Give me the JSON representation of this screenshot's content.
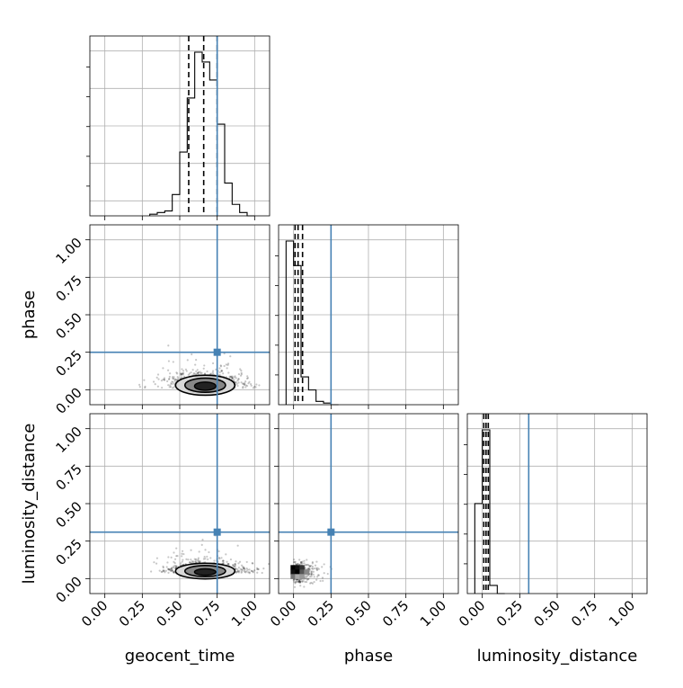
{
  "chart_data": {
    "type": "corner",
    "title": "",
    "parameters": [
      "geocent_time",
      "phase",
      "luminosity_distance"
    ],
    "axis_range": [
      -0.1,
      1.1
    ],
    "ticks": [
      0.0,
      0.25,
      0.5,
      0.75,
      1.0
    ],
    "tick_labels": [
      "0.00",
      "0.25",
      "0.50",
      "0.75",
      "1.00"
    ],
    "grid": true,
    "colors": {
      "truth": "#4682b4",
      "hist": "#000000",
      "density": "#000000"
    },
    "truths": {
      "geocent_time": 0.75,
      "phase": 0.25,
      "luminosity_distance": 0.31
    },
    "quantiles": {
      "geocent_time": [
        0.56,
        0.66,
        0.75
      ],
      "phase": [
        0.01,
        0.03,
        0.06
      ],
      "luminosity_distance": [
        0.01,
        0.025,
        0.04
      ]
    },
    "histograms": {
      "geocent_time": {
        "edges": [
          0.3,
          0.35,
          0.4,
          0.45,
          0.5,
          0.55,
          0.6,
          0.65,
          0.7,
          0.75,
          0.8,
          0.85,
          0.9,
          0.95,
          1.0
        ],
        "counts": [
          0.01,
          0.02,
          0.03,
          0.13,
          0.39,
          0.72,
          1.0,
          0.94,
          0.83,
          0.56,
          0.2,
          0.07,
          0.02,
          0.0
        ]
      },
      "phase": {
        "edges": [
          -0.05,
          0.0,
          0.05,
          0.1,
          0.15,
          0.2,
          0.25,
          0.3
        ],
        "counts": [
          1.0,
          0.85,
          0.17,
          0.09,
          0.02,
          0.01,
          0.0
        ]
      },
      "luminosity_distance": {
        "edges": [
          -0.05,
          0.0,
          0.05,
          0.1,
          0.15
        ],
        "counts": [
          0.55,
          1.0,
          0.05,
          0.0
        ]
      }
    },
    "scatter_2d": {
      "phase_vs_geocent_time": {
        "x_center": 0.67,
        "y_center": 0.03,
        "x_spread": 0.13,
        "y_spread": 0.045
      },
      "luminosity_distance_vs_geocent_time": {
        "x_center": 0.67,
        "y_center": 0.05,
        "x_spread": 0.13,
        "y_spread": 0.035
      },
      "luminosity_distance_vs_phase": {
        "x_center": 0.03,
        "y_center": 0.04,
        "x_spread": 0.06,
        "y_spread": 0.035
      }
    }
  }
}
